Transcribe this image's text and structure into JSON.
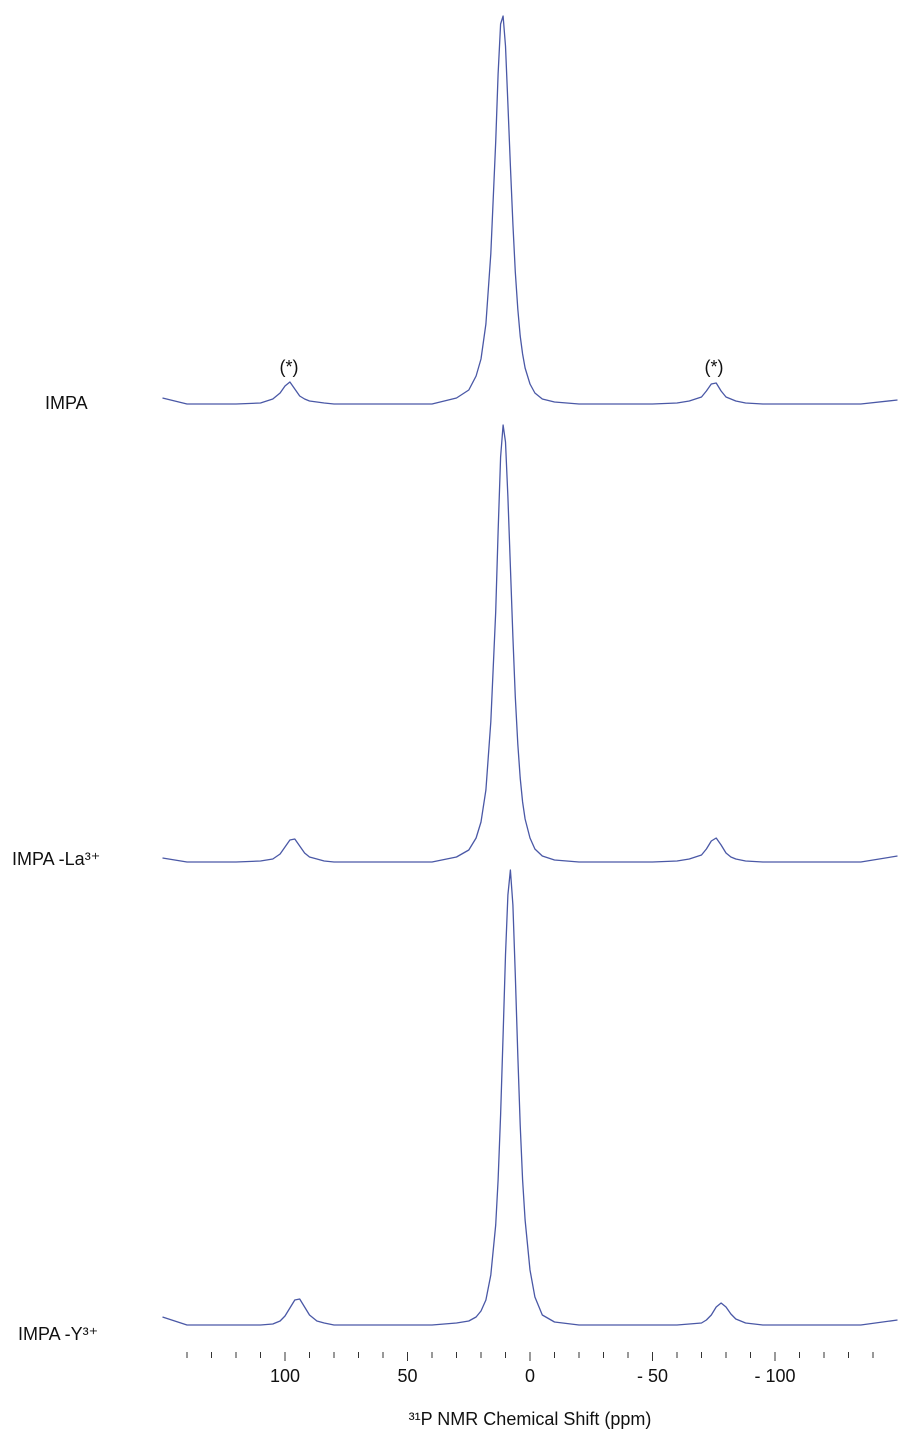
{
  "chart_data": {
    "type": "line",
    "x_label": "³¹P NMR Chemical Shift (ppm)",
    "annotations": [
      "(*)",
      "(*)"
    ],
    "xlim": [
      150,
      -150
    ],
    "xticks": [
      100,
      50,
      0,
      {
        "value": -50,
        "label": "- 50"
      },
      {
        "value": -100,
        "label": "- 100"
      }
    ],
    "xminorticks": [
      140,
      130,
      120,
      110,
      90,
      80,
      70,
      60,
      40,
      30,
      20,
      10,
      -10,
      -20,
      -30,
      -40,
      -60,
      -70,
      -80,
      -90,
      -110,
      -120,
      -130,
      -140
    ],
    "x": [
      150,
      140,
      130,
      120,
      110,
      105,
      102,
      100,
      98,
      96,
      94,
      92,
      90,
      87,
      84,
      80,
      70,
      60,
      50,
      40,
      30,
      25,
      22,
      20,
      18,
      16,
      14,
      13,
      12,
      11,
      10,
      9,
      8,
      7,
      6,
      5,
      4,
      3,
      2,
      0,
      -2,
      -5,
      -10,
      -20,
      -30,
      -40,
      -50,
      -60,
      -65,
      -70,
      -72,
      -74,
      -76,
      -78,
      -80,
      -82,
      -84,
      -88,
      -95,
      -105,
      -115,
      -125,
      -135,
      -150
    ],
    "series": [
      {
        "name": "IMPA",
        "color": "#4a58a6",
        "values": [
          6,
          0,
          0,
          0,
          1,
          5,
          11,
          18,
          22,
          15,
          8,
          5,
          3,
          2,
          1,
          0,
          0,
          0,
          0,
          0,
          6,
          14,
          28,
          45,
          80,
          150,
          262,
          330,
          380,
          388,
          358,
          300,
          238,
          180,
          132,
          95,
          68,
          50,
          36,
          20,
          11,
          5,
          2,
          0,
          0,
          0,
          0,
          1,
          3,
          7,
          13,
          20,
          21,
          13,
          7,
          5,
          3,
          1,
          0,
          0,
          0,
          0,
          0,
          4
        ]
      },
      {
        "name": "IMPA -La³⁺",
        "color": "#4a58a6",
        "values": [
          4,
          0,
          0,
          0,
          1,
          3,
          8,
          15,
          22,
          23,
          16,
          9,
          5,
          3,
          1,
          0,
          0,
          0,
          0,
          0,
          5,
          12,
          24,
          40,
          72,
          140,
          250,
          330,
          405,
          437,
          420,
          365,
          295,
          225,
          165,
          118,
          84,
          60,
          43,
          24,
          13,
          6,
          2,
          0,
          0,
          0,
          0,
          1,
          3,
          7,
          13,
          21,
          24,
          17,
          9,
          5,
          3,
          1,
          0,
          0,
          0,
          0,
          0,
          6
        ]
      },
      {
        "name": "IMPA -Y³⁺",
        "color": "#4a58a6",
        "values": [
          8,
          0,
          0,
          0,
          0,
          1,
          4,
          9,
          17,
          25,
          26,
          18,
          10,
          4,
          2,
          0,
          0,
          0,
          0,
          0,
          2,
          4,
          8,
          14,
          25,
          50,
          100,
          145,
          210,
          290,
          370,
          430,
          455,
          420,
          350,
          270,
          200,
          145,
          105,
          55,
          28,
          10,
          3,
          0,
          0,
          0,
          0,
          0,
          1,
          2,
          5,
          10,
          18,
          22,
          18,
          11,
          6,
          2,
          0,
          0,
          0,
          0,
          0,
          5
        ]
      }
    ]
  }
}
